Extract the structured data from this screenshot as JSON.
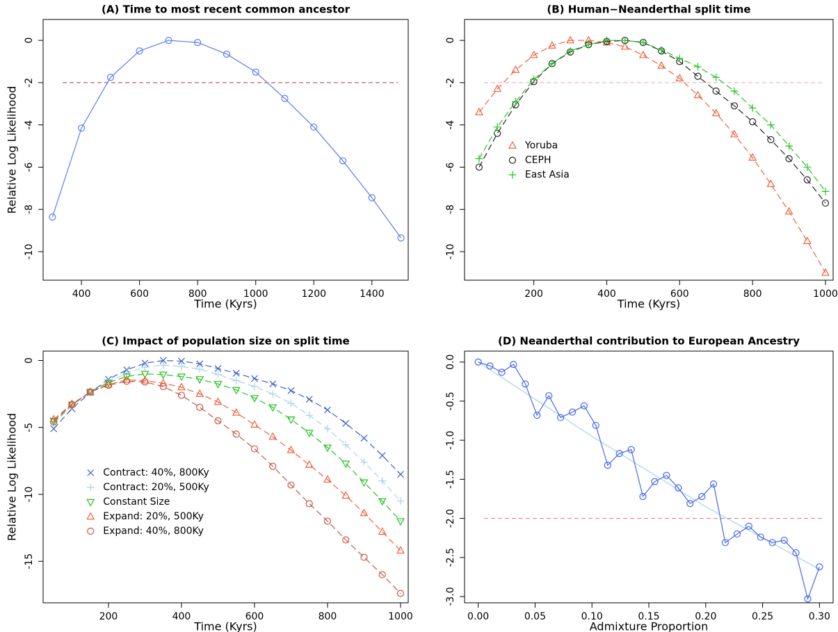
{
  "chart_data": [
    {
      "type": "line",
      "title": "(A) Time to most recent common ancestor",
      "x_label": "Time (Kyrs)",
      "y_label": "Relative Log Likelihood",
      "x": [
        300,
        400,
        500,
        600,
        700,
        800,
        900,
        1000,
        1100,
        1200,
        1300,
        1400,
        1500
      ],
      "series": [
        {
          "color": "#5a7cf2",
          "marker": "circle",
          "values": [
            -8.36,
            -4.15,
            -1.75,
            -0.5,
            0,
            -0.1,
            -0.65,
            -1.5,
            -2.75,
            -4.1,
            -5.7,
            -7.45,
            -9.35
          ]
        }
      ],
      "xlim": [
        268,
        1525
      ],
      "ylim": [
        -11.35,
        0.99
      ],
      "xticks": [
        400,
        600,
        800,
        1000,
        1200,
        1400
      ],
      "yticks": [
        0,
        -2,
        -4,
        -6,
        -8,
        -10
      ],
      "hline": -2,
      "hline_color": "#b03050",
      "line_style": "solid"
    },
    {
      "type": "line",
      "title": "(B) Human−Neanderthal split time",
      "x_label": "Time (Kyrs)",
      "x": [
        50,
        100,
        150,
        200,
        250,
        300,
        350,
        400,
        450,
        500,
        550,
        600,
        650,
        700,
        750,
        800,
        850,
        900,
        950,
        1000
      ],
      "series": [
        {
          "name": "Yoruba",
          "color": "#f0603c",
          "marker": "triangle",
          "values": [
            -3.4,
            -2.3,
            -1.4,
            -0.7,
            -0.25,
            0,
            0,
            -0.1,
            -0.3,
            -0.7,
            -1.2,
            -1.8,
            -2.6,
            -3.45,
            -4.45,
            -5.55,
            -6.8,
            -8.1,
            -9.5,
            -11.0
          ]
        },
        {
          "name": "CEPH",
          "color": "#222222",
          "marker": "circle",
          "values": [
            -6.0,
            -4.4,
            -3.05,
            -1.95,
            -1.1,
            -0.55,
            -0.2,
            -0.05,
            0,
            -0.1,
            -0.5,
            -1.0,
            -1.7,
            -2.4,
            -3.1,
            -3.85,
            -4.7,
            -5.6,
            -6.6,
            -7.7
          ]
        },
        {
          "name": "East Asia",
          "color": "#22c322",
          "marker": "plus",
          "values": [
            -5.6,
            -4.1,
            -2.9,
            -1.85,
            -1.1,
            -0.5,
            -0.2,
            0,
            0,
            -0.1,
            -0.45,
            -0.85,
            -1.25,
            -1.75,
            -2.4,
            -3.2,
            -4.0,
            -5.0,
            -6.0,
            -7.15
          ]
        }
      ],
      "xlim": [
        10,
        1021
      ],
      "ylim": [
        -11.35,
        0.99
      ],
      "xticks": [
        200,
        400,
        600,
        800,
        1000
      ],
      "yticks": [
        0,
        -2,
        -4,
        -6,
        -8,
        -10
      ],
      "hline": -2,
      "hline_color": "#f0a0b4",
      "line_style": "dashed",
      "legend": "center-left"
    },
    {
      "type": "line",
      "title": "(C) Impact of population size on split time",
      "x_label": "Time (Kyrs)",
      "y_label": "Relative Log Likelihood",
      "x": [
        50,
        100,
        150,
        200,
        250,
        300,
        350,
        400,
        450,
        500,
        550,
        600,
        650,
        700,
        750,
        800,
        850,
        900,
        950,
        1000
      ],
      "series": [
        {
          "name": "Contract: 40%, 800Ky",
          "color": "#3a5fcd",
          "marker": "x",
          "values": [
            -5.1,
            -3.6,
            -2.4,
            -1.4,
            -0.7,
            -0.2,
            0,
            -0.05,
            -0.25,
            -0.6,
            -0.95,
            -1.35,
            -1.75,
            -2.25,
            -2.9,
            -3.7,
            -4.7,
            -5.8,
            -7.1,
            -8.5
          ]
        },
        {
          "name": "Contract: 20%, 500Ky",
          "color": "#a8d4e6",
          "marker": "plus",
          "values": [
            -4.7,
            -3.4,
            -2.35,
            -1.6,
            -0.95,
            -0.5,
            -0.35,
            -0.45,
            -0.65,
            -1.05,
            -1.5,
            -1.95,
            -2.5,
            -3.2,
            -4.1,
            -5.1,
            -6.3,
            -7.6,
            -9.0,
            -10.5
          ]
        },
        {
          "name": "Constant Size",
          "color": "#22c322",
          "marker": "triangle-down",
          "values": [
            -4.5,
            -3.3,
            -2.35,
            -1.65,
            -1.2,
            -1.0,
            -1.05,
            -1.2,
            -1.4,
            -1.75,
            -2.2,
            -2.8,
            -3.5,
            -4.4,
            -5.4,
            -6.5,
            -7.7,
            -9.1,
            -10.5,
            -12.0
          ]
        },
        {
          "name": "Expand: 20%, 500Ky",
          "color": "#f0603c",
          "marker": "triangle",
          "values": [
            -4.4,
            -3.25,
            -2.35,
            -1.8,
            -1.45,
            -1.5,
            -1.7,
            -2.0,
            -2.5,
            -3.1,
            -3.9,
            -4.8,
            -5.7,
            -6.7,
            -7.8,
            -8.9,
            -10.1,
            -11.4,
            -12.8,
            -14.2
          ]
        },
        {
          "name": "Expand: 40%, 800Ky",
          "color": "#c8553d",
          "marker": "circle",
          "values": [
            -4.6,
            -3.3,
            -2.35,
            -1.85,
            -1.55,
            -1.6,
            -1.95,
            -2.6,
            -3.5,
            -4.5,
            -5.5,
            -6.6,
            -7.9,
            -9.3,
            -10.7,
            -12.0,
            -13.4,
            -14.7,
            -16.0,
            -17.4
          ]
        }
      ],
      "xlim": [
        21,
        1021
      ],
      "ylim": [
        -18.1,
        0.7
      ],
      "xticks": [
        200,
        400,
        600,
        800,
        1000
      ],
      "yticks": [
        0,
        -5,
        -10,
        -15
      ],
      "line_style": "dashed",
      "legend": "center-left"
    },
    {
      "type": "line",
      "title": "(D) Neanderthal contribution to European Ancestry",
      "x_label": "Admixture Proportion",
      "x": [
        0,
        0.0103,
        0.0207,
        0.031,
        0.0414,
        0.0517,
        0.0621,
        0.0724,
        0.0828,
        0.0931,
        0.1034,
        0.1138,
        0.1241,
        0.1345,
        0.1448,
        0.1552,
        0.1655,
        0.1759,
        0.1862,
        0.1966,
        0.2069,
        0.2172,
        0.2276,
        0.2379,
        0.2483,
        0.2586,
        0.269,
        0.2793,
        0.2897,
        0.3
      ],
      "series": [
        {
          "color": "#4466ee",
          "marker": "circle",
          "values": [
            0,
            -0.05,
            -0.13,
            -0.03,
            -0.28,
            -0.68,
            -0.43,
            -0.71,
            -0.64,
            -0.56,
            -0.81,
            -1.32,
            -1.17,
            -1.12,
            -1.72,
            -1.53,
            -1.45,
            -1.61,
            -1.81,
            -1.72,
            -1.56,
            -2.31,
            -2.2,
            -2.1,
            -2.24,
            -2.31,
            -2.28,
            -2.44,
            -3.03,
            -2.62
          ]
        }
      ],
      "fit": {
        "color": "#b4dcef",
        "x": [
          0,
          0.1,
          0.2,
          0.3
        ],
        "values": [
          0,
          -0.95,
          -1.85,
          -2.65
        ]
      },
      "xlim": [
        -0.012,
        0.312
      ],
      "ylim": [
        -3.08,
        0.14
      ],
      "xticks": [
        {
          "value": 0,
          "label": "0.00"
        },
        {
          "value": 0.05,
          "label": "0.05"
        },
        {
          "value": 0.1,
          "label": "0.10"
        },
        {
          "value": 0.15,
          "label": "0.15"
        },
        {
          "value": 0.2,
          "label": "0.20"
        },
        {
          "value": 0.25,
          "label": "0.25"
        },
        {
          "value": 0.3,
          "label": "0.30"
        }
      ],
      "yticks": [
        {
          "value": 0,
          "label": "0.0"
        },
        -0.5,
        {
          "value": -1,
          "label": "-1.0"
        },
        -1.5,
        {
          "value": -2,
          "label": "-2.0"
        },
        -2.5,
        {
          "value": -3,
          "label": "-3.0"
        }
      ],
      "hline": -2,
      "hline_color": "#e07090",
      "line_style": "solid"
    }
  ]
}
